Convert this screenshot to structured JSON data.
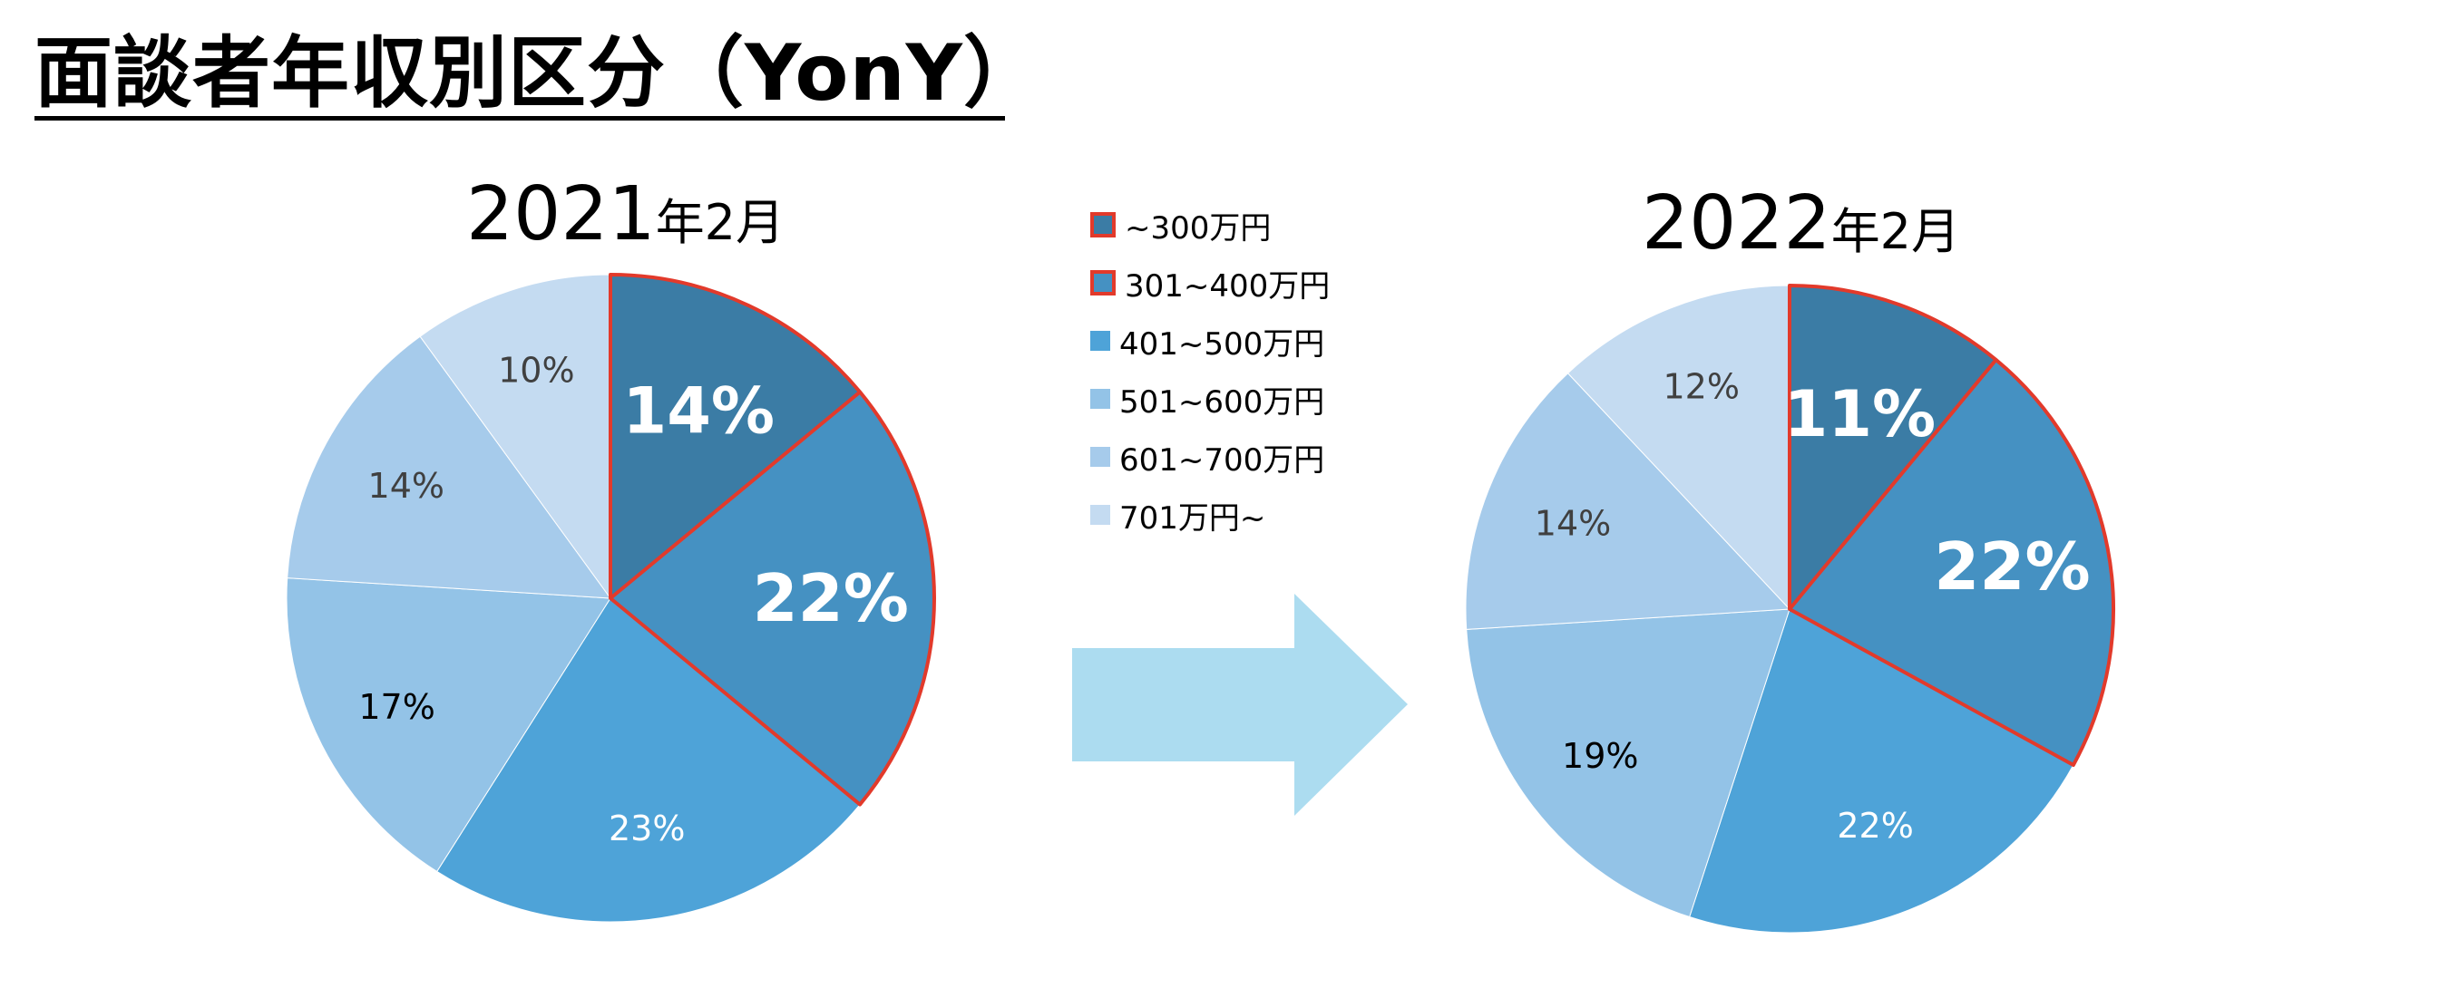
{
  "page": {
    "title": "面談者年収別区分（YonY）"
  },
  "legend": {
    "items": [
      {
        "label": "~300万円",
        "color": "#3b7ca5",
        "highlight": true
      },
      {
        "label": "301~400万円",
        "color": "#4591c2",
        "highlight": true
      },
      {
        "label": "401~500万円",
        "color": "#4ea3d8",
        "highlight": false
      },
      {
        "label": "501~600万円",
        "color": "#93c3e7",
        "highlight": false
      },
      {
        "label": "601~700万円",
        "color": "#a6cbeb",
        "highlight": false
      },
      {
        "label": "701万円~",
        "color": "#c4dbf1",
        "highlight": false
      }
    ]
  },
  "colors": {
    "highlight_border": "#e23a2b",
    "arrow": "#acdcf0"
  },
  "chart_data": [
    {
      "type": "pie",
      "title": {
        "year": "2021",
        "suffix": "年2月"
      },
      "categories": [
        "~300万円",
        "301~400万円",
        "401~500万円",
        "501~600万円",
        "601~700万円",
        "701万円~"
      ],
      "values": [
        14,
        22,
        23,
        17,
        14,
        10
      ],
      "labels": [
        "14%",
        "22%",
        "23%",
        "17%",
        "14%",
        "10%"
      ],
      "highlighted": [
        0,
        1
      ]
    },
    {
      "type": "pie",
      "title": {
        "year": "2022",
        "suffix": "年2月"
      },
      "categories": [
        "~300万円",
        "301~400万円",
        "401~500万円",
        "501~600万円",
        "601~700万円",
        "701万円~"
      ],
      "values": [
        11,
        22,
        22,
        19,
        14,
        12
      ],
      "labels": [
        "11%",
        "22%",
        "22%",
        "19%",
        "14%",
        "12%"
      ],
      "highlighted": [
        0,
        1
      ]
    }
  ]
}
